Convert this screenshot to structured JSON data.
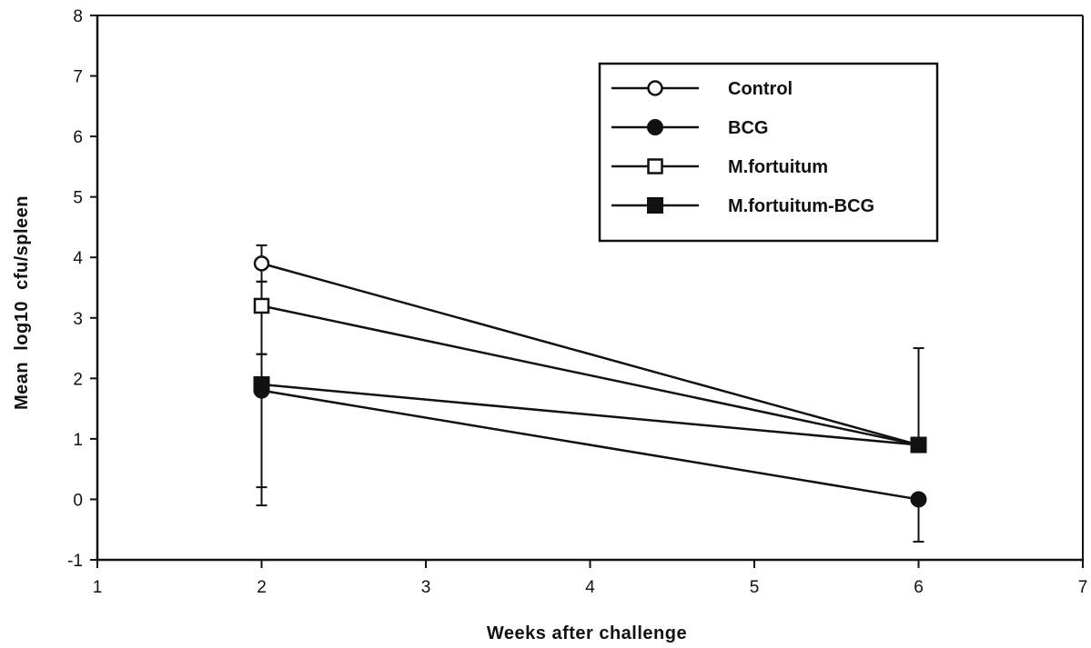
{
  "chart_data": {
    "type": "line",
    "title": "",
    "xlabel": "Weeks after challenge",
    "ylabel": "Mean  log10  cfu/spleen",
    "xlim": [
      1,
      7
    ],
    "ylim": [
      -1,
      8
    ],
    "xticks": [
      1,
      2,
      3,
      4,
      5,
      6,
      7
    ],
    "yticks": [
      -1,
      0,
      1,
      2,
      3,
      4,
      5,
      6,
      7,
      8
    ],
    "grid": false,
    "legend_position": "top-right",
    "series": [
      {
        "name": "Control",
        "marker": "open-circle",
        "x": [
          2,
          6
        ],
        "y": [
          3.9,
          0.9
        ],
        "error_low": [
          3.6,
          0.9
        ],
        "error_high": [
          4.2,
          0.9
        ]
      },
      {
        "name": "BCG",
        "marker": "filled-circle",
        "x": [
          2,
          6
        ],
        "y": [
          1.8,
          0.0
        ],
        "error_low": [
          0.2,
          -0.7
        ],
        "error_high": [
          2.4,
          0.0
        ]
      },
      {
        "name": "M.fortuitum",
        "marker": "open-square",
        "x": [
          2,
          6
        ],
        "y": [
          3.2,
          0.9
        ],
        "error_low": [
          2.4,
          0.9
        ],
        "error_high": [
          3.6,
          0.9
        ]
      },
      {
        "name": "M.fortuitum-BCG",
        "marker": "filled-square",
        "x": [
          2,
          6
        ],
        "y": [
          1.9,
          0.9
        ],
        "error_low": [
          -0.1,
          0.9
        ],
        "error_high": [
          1.9,
          2.5
        ]
      }
    ],
    "colors": {
      "ink": "#111111",
      "background": "#ffffff"
    }
  }
}
